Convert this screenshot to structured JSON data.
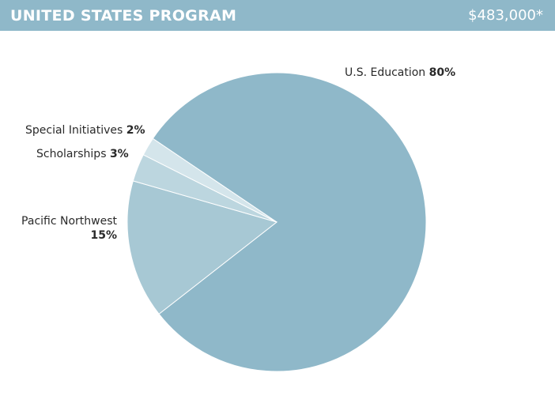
{
  "header": {
    "title": "UNITED STATES PROGRAM",
    "amount": "$483,000*"
  },
  "chart_data": {
    "type": "pie",
    "title": "UNITED STATES PROGRAM",
    "total_label": "$483,000*",
    "slices": [
      {
        "name": "U.S. Education",
        "value": 80,
        "value_label": "80%",
        "color": "#8fb8c9"
      },
      {
        "name": "Pacific Northwest",
        "value": 15,
        "value_label": "15%",
        "color": "#a7c8d4"
      },
      {
        "name": "Scholarships",
        "value": 3,
        "value_label": "3%",
        "color": "#bcd6df"
      },
      {
        "name": "Special Initiatives",
        "value": 2,
        "value_label": "2%",
        "color": "#d4e5eb"
      }
    ],
    "start_angle_deg": 304,
    "direction": "clockwise",
    "legend": "none",
    "labels": "outside"
  }
}
